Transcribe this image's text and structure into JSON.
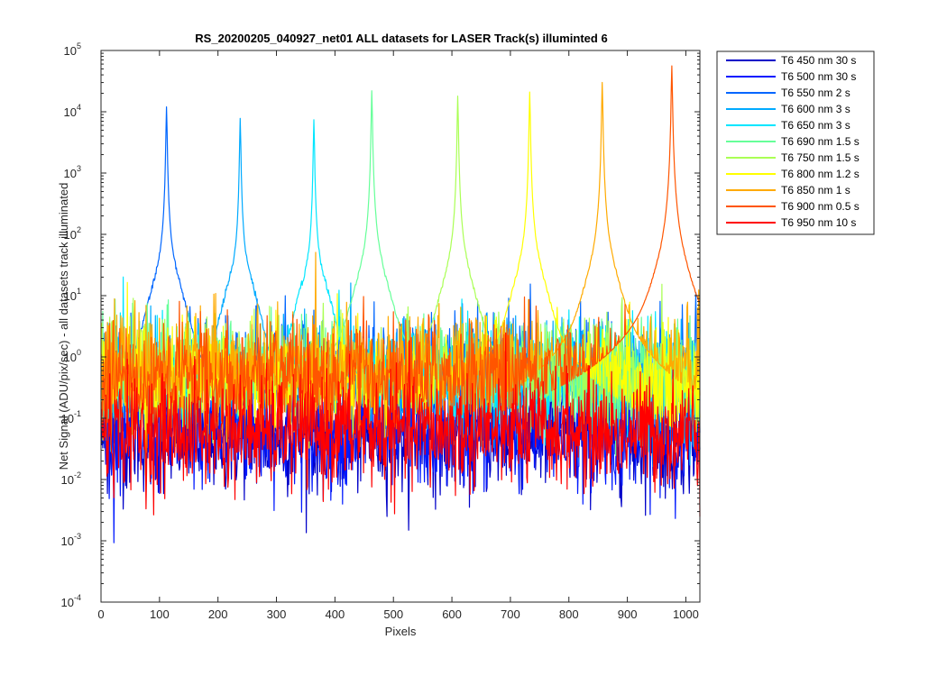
{
  "chart_data": {
    "type": "line",
    "title": "RS_20200205_040927_net01 ALL datasets for LASER  Track(s) illuminted 6",
    "xlabel": "Pixels",
    "ylabel": "Net Signal (ADU/pix/sec) - all datasets track illuminated",
    "xlim": [
      0,
      1024
    ],
    "ylim": [
      0.0001,
      100000
    ],
    "yscale": "log",
    "x_ticks": [
      0,
      100,
      200,
      300,
      400,
      500,
      600,
      700,
      800,
      900,
      1000
    ],
    "y_ticks": [
      {
        "base": "10",
        "exp": "-4",
        "value": 0.0001
      },
      {
        "base": "10",
        "exp": "-3",
        "value": 0.001
      },
      {
        "base": "10",
        "exp": "-2",
        "value": 0.01
      },
      {
        "base": "10",
        "exp": "-1",
        "value": 0.1
      },
      {
        "base": "10",
        "exp": "0",
        "value": 1
      },
      {
        "base": "10",
        "exp": "1",
        "value": 10
      },
      {
        "base": "10",
        "exp": "2",
        "value": 100
      },
      {
        "base": "10",
        "exp": "3",
        "value": 1000
      },
      {
        "base": "10",
        "exp": "4",
        "value": 10000
      },
      {
        "base": "10",
        "exp": "5",
        "value": 100000
      }
    ],
    "grid": false,
    "legend_position": "outside-top-right",
    "series": [
      {
        "name": "T6 450 nm 30 s",
        "color": "#0000c8",
        "peak_x": null,
        "peak_y": null,
        "noise_level": 0.05
      },
      {
        "name": "T6 500 nm 30 s",
        "color": "#0019ff",
        "peak_x": null,
        "peak_y": null,
        "noise_level": 0.06
      },
      {
        "name": "T6 550 nm 2 s",
        "color": "#0066ff",
        "peak_x": 112,
        "peak_y": 12000,
        "noise_level": 0.6
      },
      {
        "name": "T6 600 nm 3 s",
        "color": "#00aaff",
        "peak_x": 238,
        "peak_y": 7800,
        "noise_level": 0.4
      },
      {
        "name": "T6 650 nm 3 s",
        "color": "#00e6ff",
        "peak_x": 364,
        "peak_y": 7400,
        "noise_level": 0.4
      },
      {
        "name": "T6 690 nm 1.5 s",
        "color": "#66ff99",
        "peak_x": 463,
        "peak_y": 22000,
        "noise_level": 0.5
      },
      {
        "name": "T6 750 nm 1.5 s",
        "color": "#aaff55",
        "peak_x": 610,
        "peak_y": 18000,
        "noise_level": 0.5
      },
      {
        "name": "T6 800 nm 1.2 s",
        "color": "#ffff00",
        "peak_x": 733,
        "peak_y": 21000,
        "noise_level": 0.4
      },
      {
        "name": "T6 850 nm 1 s",
        "color": "#ffaa00",
        "peak_x": 857,
        "peak_y": 30000,
        "noise_level": 0.6
      },
      {
        "name": "T6 900 nm 0.5 s",
        "color": "#ff5500",
        "peak_x": 976,
        "peak_y": 56000,
        "noise_level": 0.5
      },
      {
        "name": "T6 950 nm 10 s",
        "color": "#ff0000",
        "peak_x": null,
        "peak_y": null,
        "noise_level": 0.06
      }
    ]
  }
}
